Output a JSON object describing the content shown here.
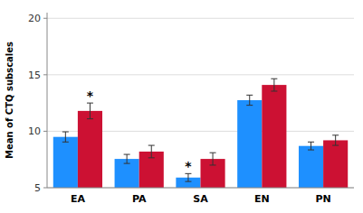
{
  "chart_data": {
    "type": "bar",
    "categories": [
      "EA",
      "PA",
      "SA",
      "EN",
      "PN"
    ],
    "series": [
      {
        "color": "#1E90FF",
        "values": [
          9.5,
          7.55,
          5.9,
          12.75,
          8.7
        ],
        "errors": [
          0.45,
          0.4,
          0.35,
          0.45,
          0.35
        ]
      },
      {
        "color": "#CC1133",
        "values": [
          11.8,
          8.2,
          7.55,
          14.1,
          9.2
        ],
        "errors": [
          0.7,
          0.55,
          0.55,
          0.55,
          0.45
        ]
      }
    ],
    "ylabel": "Mean of CTQ subscales",
    "ylim": [
      5,
      20.5
    ],
    "yticks": [
      5,
      10,
      15,
      20
    ],
    "grid": true,
    "annotations": [
      {
        "text": "*",
        "category": 0,
        "series": 1
      },
      {
        "text": "*",
        "category": 2,
        "series": 0
      }
    ]
  }
}
